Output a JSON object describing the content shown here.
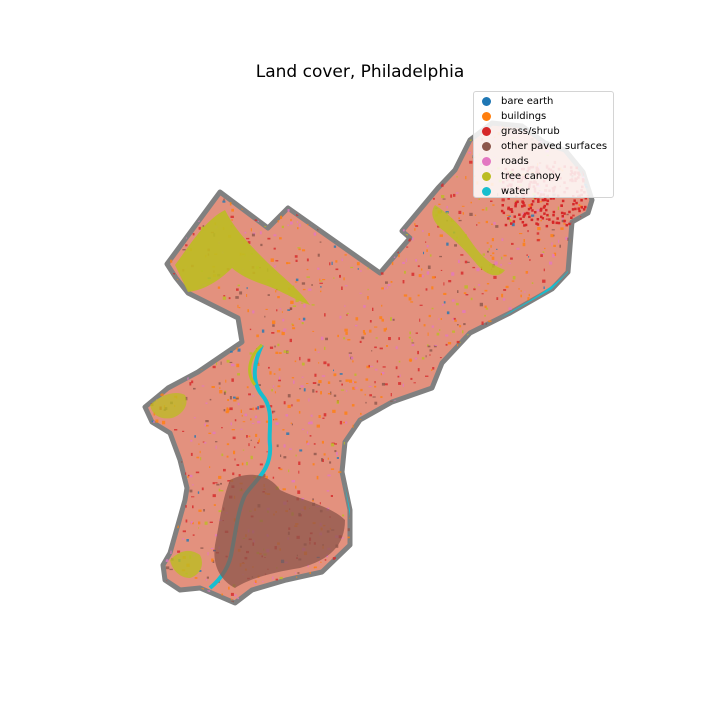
{
  "title": "Land cover, Philadelphia",
  "legend": {
    "entries": [
      {
        "label": "bare earth",
        "color": "#1f77b4"
      },
      {
        "label": "buildings",
        "color": "#ff7f0e"
      },
      {
        "label": "grass/shrub",
        "color": "#d62728"
      },
      {
        "label": "other paved surfaces",
        "color": "#8c564b"
      },
      {
        "label": "roads",
        "color": "#e377c2"
      },
      {
        "label": "tree canopy",
        "color": "#bcbd22"
      },
      {
        "label": "water",
        "color": "#17becf"
      }
    ]
  },
  "map": {
    "boundary_color": "#808080",
    "base_fill": "#e3917e"
  }
}
